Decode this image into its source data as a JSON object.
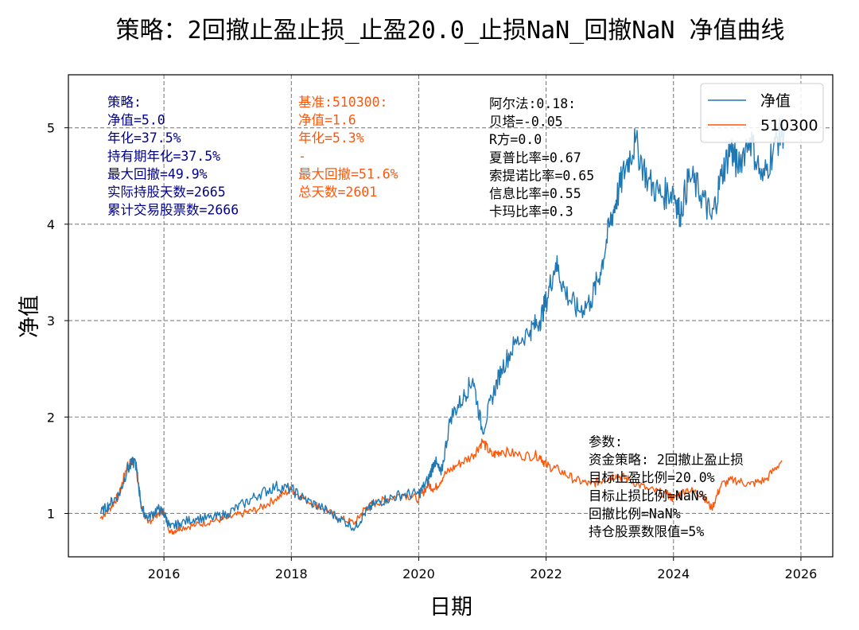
{
  "chart_data": {
    "type": "line",
    "title": "策略：2回撤止盈止损_止盈20.0_止损NaN_回撤NaN 净值曲线",
    "xlabel": "日期",
    "ylabel": "净值",
    "xlim": [
      2014.5,
      2026.5
    ],
    "ylim": [
      0.55,
      5.55
    ],
    "grid": true,
    "x_ticks": [
      2016,
      2018,
      2020,
      2022,
      2024,
      2026
    ],
    "y_ticks": [
      1,
      2,
      3,
      4,
      5
    ],
    "legend_position": "top-right",
    "series": [
      {
        "name": "净值",
        "color": "#1f77b4",
        "x": [
          2015.0,
          2015.15,
          2015.3,
          2015.42,
          2015.55,
          2015.65,
          2015.75,
          2015.9,
          2016.0,
          2016.1,
          2016.25,
          2016.5,
          2016.75,
          2017.0,
          2017.25,
          2017.5,
          2017.75,
          2018.0,
          2018.2,
          2018.5,
          2018.75,
          2019.0,
          2019.15,
          2019.3,
          2019.5,
          2019.75,
          2020.0,
          2020.15,
          2020.25,
          2020.35,
          2020.5,
          2020.7,
          2020.85,
          2021.0,
          2021.15,
          2021.3,
          2021.5,
          2021.75,
          2021.9,
          2022.0,
          2022.15,
          2022.3,
          2022.5,
          2022.7,
          2022.85,
          2023.0,
          2023.1,
          2023.25,
          2023.4,
          2023.6,
          2023.8,
          2024.0,
          2024.1,
          2024.25,
          2024.45,
          2024.6,
          2024.75,
          2024.9,
          2025.0,
          2025.2,
          2025.4,
          2025.6,
          2025.75
        ],
        "values": [
          1.0,
          1.1,
          1.2,
          1.45,
          1.55,
          1.05,
          0.95,
          1.05,
          1.0,
          0.85,
          0.9,
          0.95,
          0.95,
          1.0,
          1.1,
          1.2,
          1.28,
          1.25,
          1.15,
          1.05,
          0.95,
          0.85,
          1.0,
          1.1,
          1.15,
          1.2,
          1.2,
          1.35,
          1.55,
          1.4,
          2.0,
          2.2,
          2.4,
          1.85,
          2.2,
          2.5,
          2.75,
          2.9,
          3.0,
          3.2,
          3.6,
          3.3,
          3.1,
          3.2,
          3.5,
          4.0,
          4.25,
          4.6,
          4.85,
          4.45,
          4.3,
          4.35,
          4.1,
          4.5,
          4.3,
          4.05,
          4.5,
          4.8,
          4.6,
          4.9,
          4.45,
          4.85,
          5.0
        ]
      },
      {
        "name": "510300",
        "color": "#ff5709",
        "x": [
          2015.0,
          2015.15,
          2015.3,
          2015.42,
          2015.55,
          2015.65,
          2015.75,
          2015.9,
          2016.0,
          2016.1,
          2016.25,
          2016.5,
          2016.75,
          2017.0,
          2017.25,
          2017.5,
          2017.75,
          2018.0,
          2018.2,
          2018.5,
          2018.75,
          2019.0,
          2019.15,
          2019.3,
          2019.5,
          2019.75,
          2020.0,
          2020.15,
          2020.25,
          2020.4,
          2020.6,
          2020.85,
          2021.0,
          2021.15,
          2021.3,
          2021.6,
          2021.9,
          2022.0,
          2022.2,
          2022.45,
          2022.7,
          2022.9,
          2023.1,
          2023.3,
          2023.6,
          2023.9,
          2024.0,
          2024.2,
          2024.45,
          2024.6,
          2024.75,
          2024.95,
          2025.2,
          2025.45,
          2025.7
        ],
        "values": [
          0.95,
          1.05,
          1.2,
          1.5,
          1.55,
          1.05,
          0.9,
          1.0,
          1.02,
          0.8,
          0.85,
          0.88,
          0.92,
          0.95,
          1.0,
          1.05,
          1.15,
          1.25,
          1.15,
          1.05,
          0.95,
          0.9,
          1.05,
          1.1,
          1.15,
          1.2,
          1.15,
          1.3,
          1.25,
          1.4,
          1.5,
          1.6,
          1.75,
          1.6,
          1.65,
          1.6,
          1.6,
          1.5,
          1.45,
          1.35,
          1.3,
          1.35,
          1.4,
          1.35,
          1.25,
          1.2,
          1.15,
          1.25,
          1.2,
          1.05,
          1.3,
          1.35,
          1.3,
          1.35,
          1.55
        ]
      }
    ],
    "annotations": {
      "strategy": [
        "策略:",
        "净值=5.0",
        "年化=37.5%",
        "持有期年化=37.5%",
        "最大回撤=49.9%",
        "实际持股天数=2665",
        "累计交易股票数=2666"
      ],
      "benchmark": [
        "基准:510300:",
        "净值=1.6",
        "年化=5.3%",
        "-",
        "最大回撤=51.6%",
        "总天数=2601"
      ],
      "metrics": [
        "阿尔法:0.18:",
        "贝塔=-0.05",
        "R方=0.0",
        "夏普比率=0.67",
        "索提诺比率=0.65",
        "信息比率=0.55",
        "卡玛比率=0.3"
      ],
      "params": [
        "参数:",
        "资金策略: 2回撤止盈止损",
        "目标止盈比例=20.0%",
        "目标止损比例=NaN%",
        "回撤比例=NaN%",
        "持仓股票数限值=5%"
      ]
    },
    "annotation_colors": {
      "strategy": "#00008b",
      "benchmark": "#ff5709",
      "metrics": "#000000",
      "params": "#000000"
    }
  }
}
